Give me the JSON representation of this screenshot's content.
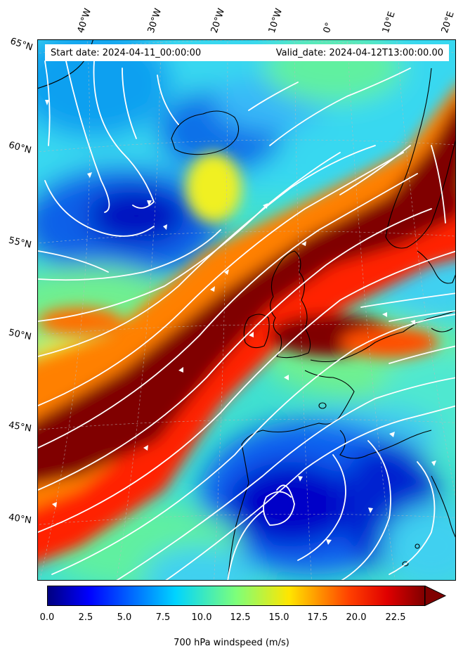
{
  "header": {
    "start_date": "Start date: 2024-04-11_00:00:00",
    "valid_date": "Valid_date: 2024-04-12T13:00:00.00"
  },
  "axes": {
    "lon_labels": [
      "40°W",
      "30°W",
      "20°W",
      "10°W",
      "0°",
      "10°E",
      "20°E"
    ],
    "lat_labels": [
      "65°N",
      "60°N",
      "55°N",
      "50°N",
      "45°N",
      "40°N"
    ]
  },
  "colorbar": {
    "label": "700 hPa windspeed (m/s)",
    "ticks": [
      "0.0",
      "2.5",
      "5.0",
      "7.5",
      "10.0",
      "12.5",
      "15.0",
      "17.5",
      "20.0",
      "22.5"
    ],
    "min": 0,
    "max": 25,
    "extend": "max",
    "colormap": "jet"
  },
  "field": {
    "variable": "700 hPa windspeed",
    "units": "m/s",
    "jet_core_color": "#800000",
    "low_speed_color": "#0000c8",
    "mid_speed_color": "#30e8e0",
    "streamline_color": "#ffffff",
    "coastline_color": "#000000"
  }
}
